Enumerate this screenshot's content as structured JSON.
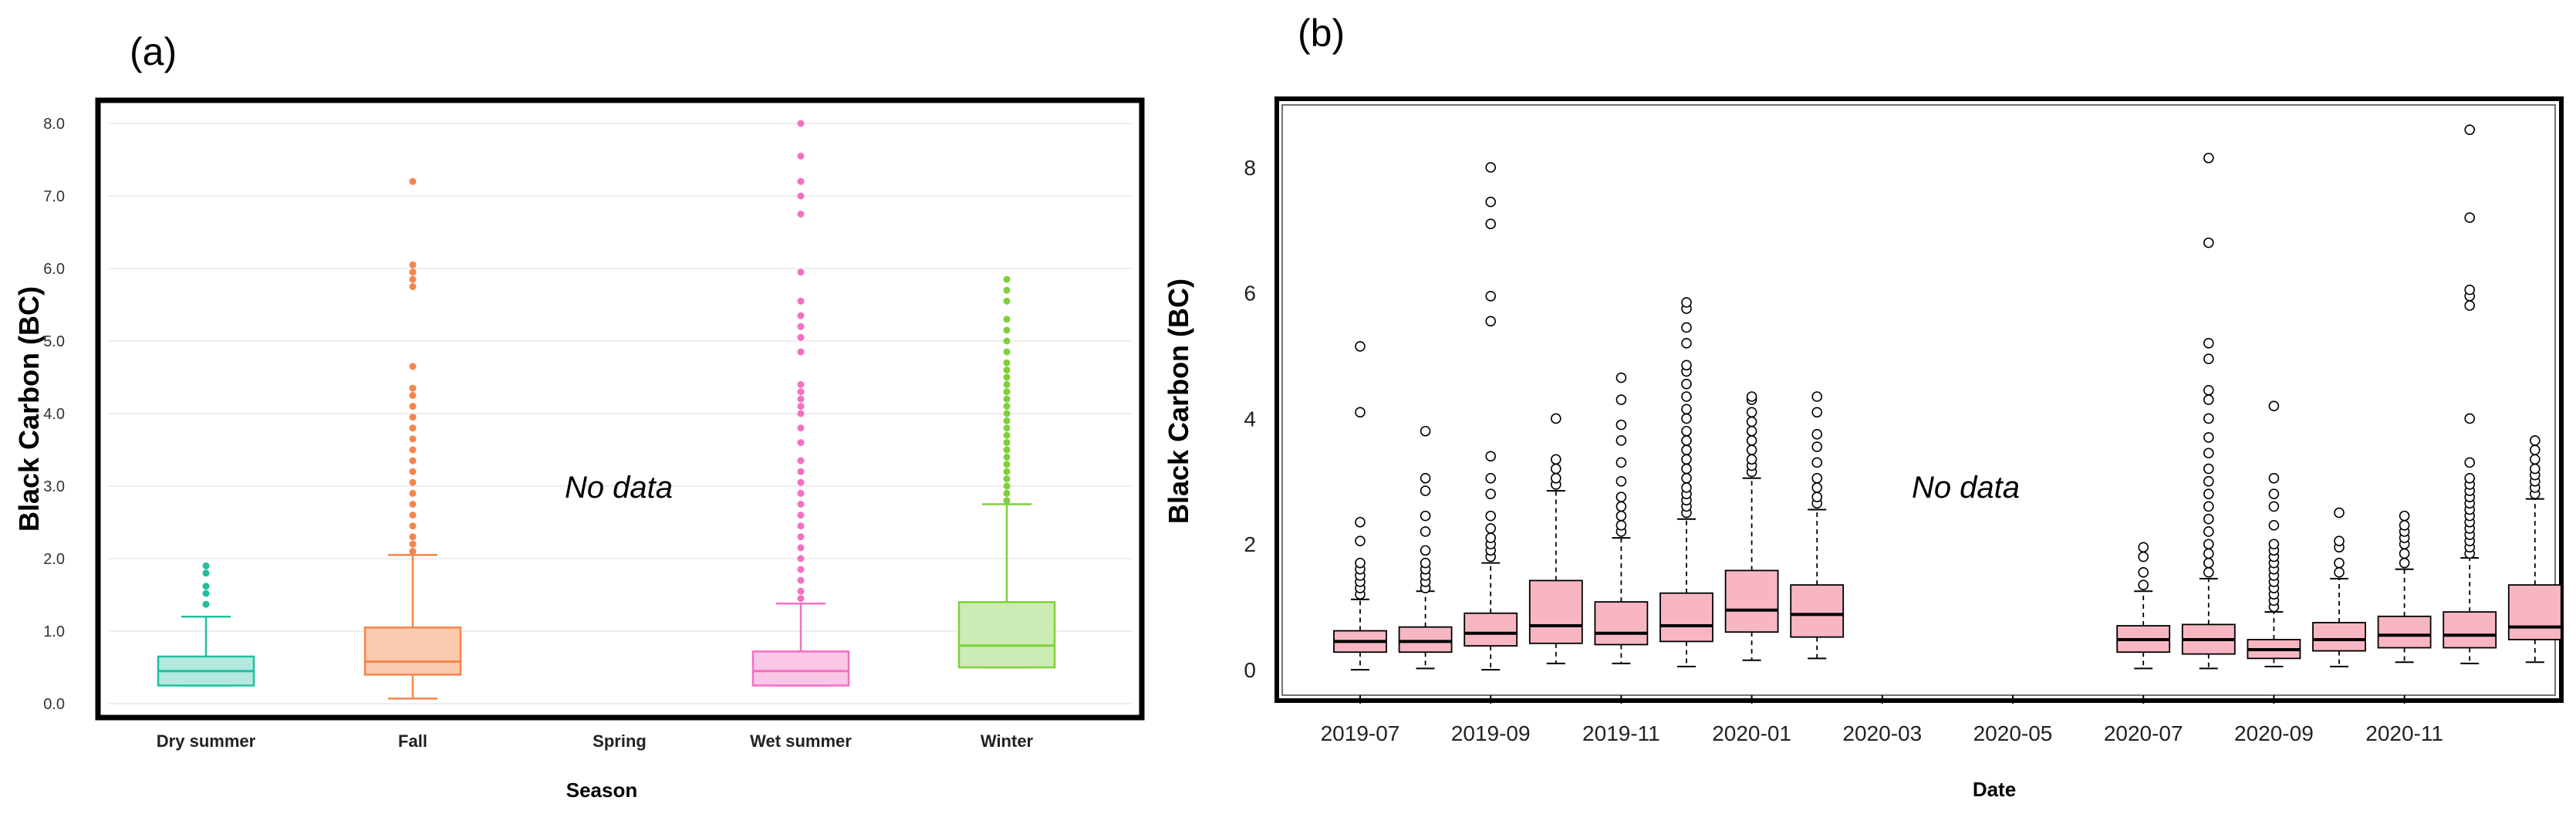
{
  "chart_data": [
    {
      "panel": "(a)",
      "type": "box",
      "xlabel": "Season",
      "ylabel": "Black Carbon (BC)",
      "ylim": [
        0,
        8.0
      ],
      "yticks": [
        "0.0",
        "1.0",
        "2.0",
        "3.0",
        "4.0",
        "5.0",
        "6.0",
        "7.0",
        "8.0"
      ],
      "grid": true,
      "annotation": "No data",
      "categories": [
        "Dry summer",
        "Fall",
        "Spring",
        "Wet summer",
        "Winter"
      ],
      "boxes": [
        {
          "name": "Dry summer",
          "color": "#1fbf9f",
          "fill": "#b4e9df",
          "min": 0.25,
          "q1": 0.25,
          "median": 0.45,
          "q3": 0.65,
          "max": 1.2,
          "outliers": [
            1.37,
            1.52,
            1.62,
            1.8,
            1.9
          ]
        },
        {
          "name": "Fall",
          "color": "#f4854d",
          "fill": "#fbc9ad",
          "min": 0.07,
          "q1": 0.4,
          "median": 0.58,
          "q3": 1.05,
          "max": 2.05,
          "outliers": [
            2.1,
            2.2,
            2.3,
            2.45,
            2.6,
            2.75,
            2.9,
            3.05,
            3.2,
            3.35,
            3.5,
            3.65,
            3.8,
            3.95,
            4.1,
            4.25,
            4.35,
            4.65,
            5.75,
            5.85,
            5.95,
            6.05,
            7.2
          ]
        },
        {
          "name": "Spring",
          "color": null,
          "fill": null,
          "min": null,
          "q1": null,
          "median": null,
          "q3": null,
          "max": null,
          "outliers": []
        },
        {
          "name": "Wet summer",
          "color": "#f56fc4",
          "fill": "#fbc7e7",
          "min": 0.25,
          "q1": 0.25,
          "median": 0.45,
          "q3": 0.72,
          "max": 1.38,
          "outliers": [
            1.45,
            1.55,
            1.7,
            1.85,
            2.0,
            2.15,
            2.3,
            2.45,
            2.6,
            2.75,
            2.9,
            3.05,
            3.2,
            3.35,
            3.6,
            3.8,
            4.0,
            4.1,
            4.2,
            4.3,
            4.4,
            4.85,
            5.05,
            5.2,
            5.35,
            5.55,
            5.95,
            6.75,
            7.0,
            7.2,
            7.55,
            8.0
          ]
        },
        {
          "name": "Winter",
          "color": "#7fd03a",
          "fill": "#cdebb4",
          "min": 0.5,
          "q1": 0.5,
          "median": 0.8,
          "q3": 1.4,
          "max": 2.75,
          "outliers": [
            2.8,
            2.9,
            3.0,
            3.1,
            3.2,
            3.3,
            3.4,
            3.5,
            3.6,
            3.7,
            3.8,
            3.9,
            4.0,
            4.1,
            4.2,
            4.3,
            4.4,
            4.5,
            4.6,
            4.7,
            4.85,
            5.0,
            5.15,
            5.3,
            5.55,
            5.7,
            5.85
          ]
        }
      ]
    },
    {
      "panel": "(b)",
      "type": "box",
      "xlabel": "Date",
      "ylabel": "Black Carbon (BC)",
      "ylim": [
        0,
        8.7
      ],
      "yticks": [
        "0",
        "2",
        "4",
        "6",
        "8"
      ],
      "grid": false,
      "annotation": "No data",
      "box_color": "#f7b6c2",
      "xticks": [
        "2019-07",
        "2019-09",
        "2019-11",
        "2020-01",
        "2020-03",
        "2020-05",
        "2020-07",
        "2020-09",
        "2020-11"
      ],
      "boxes": [
        {
          "slot": 0,
          "min": 0.0,
          "q1": 0.28,
          "median": 0.45,
          "q3": 0.62,
          "max": 1.12,
          "outliers": [
            1.2,
            1.3,
            1.4,
            1.5,
            1.6,
            1.7,
            2.05,
            2.35,
            4.1,
            5.15
          ]
        },
        {
          "slot": 1,
          "min": 0.02,
          "q1": 0.28,
          "median": 0.45,
          "q3": 0.68,
          "max": 1.25,
          "outliers": [
            1.3,
            1.4,
            1.5,
            1.6,
            1.7,
            1.9,
            2.2,
            2.45,
            2.85,
            3.05,
            3.8
          ]
        },
        {
          "slot": 2,
          "min": 0.0,
          "q1": 0.38,
          "median": 0.58,
          "q3": 0.9,
          "max": 1.7,
          "outliers": [
            1.8,
            1.9,
            2.0,
            2.1,
            2.25,
            2.45,
            2.8,
            3.05,
            3.4,
            5.55,
            5.95,
            7.1,
            7.45,
            8.0
          ]
        },
        {
          "slot": 3,
          "min": 0.1,
          "q1": 0.42,
          "median": 0.7,
          "q3": 1.42,
          "max": 2.85,
          "outliers": [
            2.95,
            3.05,
            3.2,
            3.35,
            4.0
          ]
        },
        {
          "slot": 4,
          "min": 0.1,
          "q1": 0.4,
          "median": 0.58,
          "q3": 1.08,
          "max": 2.1,
          "outliers": [
            2.2,
            2.3,
            2.45,
            2.6,
            2.75,
            3.0,
            3.3,
            3.65,
            3.9,
            4.3,
            4.65
          ]
        },
        {
          "slot": 5,
          "min": 0.05,
          "q1": 0.45,
          "median": 0.7,
          "q3": 1.22,
          "max": 2.4,
          "outliers": [
            2.5,
            2.6,
            2.7,
            2.8,
            2.9,
            3.05,
            3.2,
            3.35,
            3.5,
            3.65,
            3.8,
            4.0,
            4.15,
            4.35,
            4.55,
            4.75,
            4.85,
            5.2,
            5.45,
            5.75,
            5.85
          ]
        },
        {
          "slot": 6,
          "min": 0.15,
          "q1": 0.6,
          "median": 0.95,
          "q3": 1.58,
          "max": 3.05,
          "outliers": [
            3.15,
            3.25,
            3.35,
            3.5,
            3.65,
            3.8,
            3.95,
            4.1,
            4.3,
            4.35
          ]
        },
        {
          "slot": 7,
          "min": 0.18,
          "q1": 0.52,
          "median": 0.88,
          "q3": 1.35,
          "max": 2.55,
          "outliers": [
            2.65,
            2.75,
            2.9,
            3.05,
            3.3,
            3.55,
            3.75,
            4.1,
            4.35
          ]
        },
        {
          "slot": 12,
          "min": 0.02,
          "q1": 0.28,
          "median": 0.48,
          "q3": 0.7,
          "max": 1.25,
          "outliers": [
            1.35,
            1.55,
            1.8,
            1.95
          ]
        },
        {
          "slot": 13,
          "min": 0.02,
          "q1": 0.25,
          "median": 0.48,
          "q3": 0.72,
          "max": 1.45,
          "outliers": [
            1.55,
            1.7,
            1.85,
            2.0,
            2.2,
            2.4,
            2.6,
            2.8,
            3.0,
            3.2,
            3.45,
            3.7,
            4.0,
            4.3,
            4.45,
            4.95,
            5.2,
            6.8,
            8.15
          ]
        },
        {
          "slot": 14,
          "min": 0.05,
          "q1": 0.18,
          "median": 0.32,
          "q3": 0.48,
          "max": 0.92,
          "outliers": [
            1.0,
            1.1,
            1.2,
            1.3,
            1.4,
            1.5,
            1.6,
            1.7,
            1.8,
            1.9,
            2.0,
            2.3,
            2.6,
            2.8,
            3.05,
            4.2
          ]
        },
        {
          "slot": 15,
          "min": 0.05,
          "q1": 0.3,
          "median": 0.48,
          "q3": 0.75,
          "max": 1.45,
          "outliers": [
            1.55,
            1.7,
            1.95,
            2.05,
            2.5
          ]
        },
        {
          "slot": 16,
          "min": 0.12,
          "q1": 0.35,
          "median": 0.55,
          "q3": 0.85,
          "max": 1.6,
          "outliers": [
            1.7,
            1.85,
            2.0,
            2.1,
            2.2,
            2.3,
            2.45
          ]
        },
        {
          "slot": 17,
          "min": 0.1,
          "q1": 0.35,
          "median": 0.55,
          "q3": 0.92,
          "max": 1.78,
          "outliers": [
            1.85,
            1.95,
            2.05,
            2.15,
            2.25,
            2.35,
            2.45,
            2.55,
            2.65,
            2.75,
            2.85,
            2.95,
            3.05,
            3.3,
            4.0,
            5.8,
            5.95,
            6.05,
            7.2,
            8.6
          ]
        },
        {
          "slot": 18,
          "min": 0.12,
          "q1": 0.48,
          "median": 0.68,
          "q3": 1.35,
          "max": 2.72,
          "outliers": [
            2.8,
            2.9,
            3.0,
            3.1,
            3.2,
            3.35,
            3.5,
            3.65
          ]
        }
      ]
    }
  ]
}
